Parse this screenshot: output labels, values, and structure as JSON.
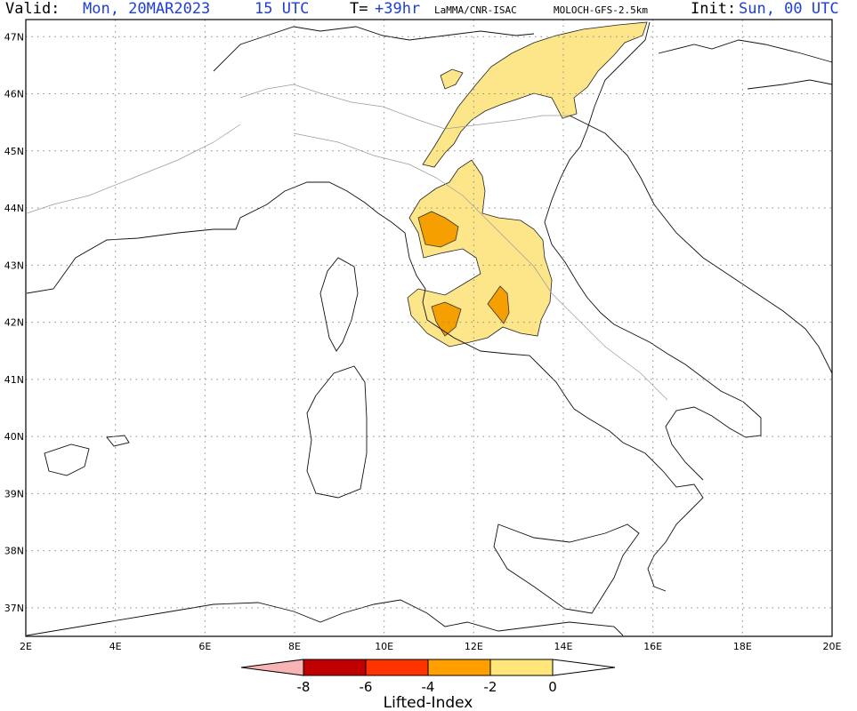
{
  "header": {
    "valid_label": "Valid:",
    "valid_value": "Mon, 20MAR2023",
    "valid_time": "15 UTC",
    "lead_label": "T=",
    "lead_value": "+39hr",
    "credit": "LaMMA/CNR-ISAC",
    "model": "MOLOCH-GFS-2.5km",
    "init_label": "Init:",
    "init_value": "Sun, 00 UTC"
  },
  "map": {
    "lon_range": [
      2,
      20
    ],
    "lat_range": [
      36.5,
      47.3
    ],
    "lon_ticks": [
      "2E",
      "4E",
      "6E",
      "8E",
      "10E",
      "12E",
      "14E",
      "16E",
      "18E",
      "20E"
    ],
    "lat_ticks": [
      "37N",
      "38N",
      "39N",
      "40N",
      "41N",
      "42N",
      "43N",
      "44N",
      "45N",
      "46N",
      "47N"
    ],
    "grid": true
  },
  "colorbar": {
    "title": "Lifted-Index",
    "ticks": [
      "-8",
      "-6",
      "-4",
      "-2",
      "0"
    ],
    "colors": [
      "#f8b4b4",
      "#c00000",
      "#ff3300",
      "#ffa000",
      "#ffe57a",
      "#ffffff"
    ]
  },
  "colors": {
    "coast": "#111111",
    "border": "#9a9a9a",
    "grid": "#8a8a8a",
    "li_0_to_m2": "#fde68a",
    "li_m2_to_m4": "#f59f00"
  }
}
